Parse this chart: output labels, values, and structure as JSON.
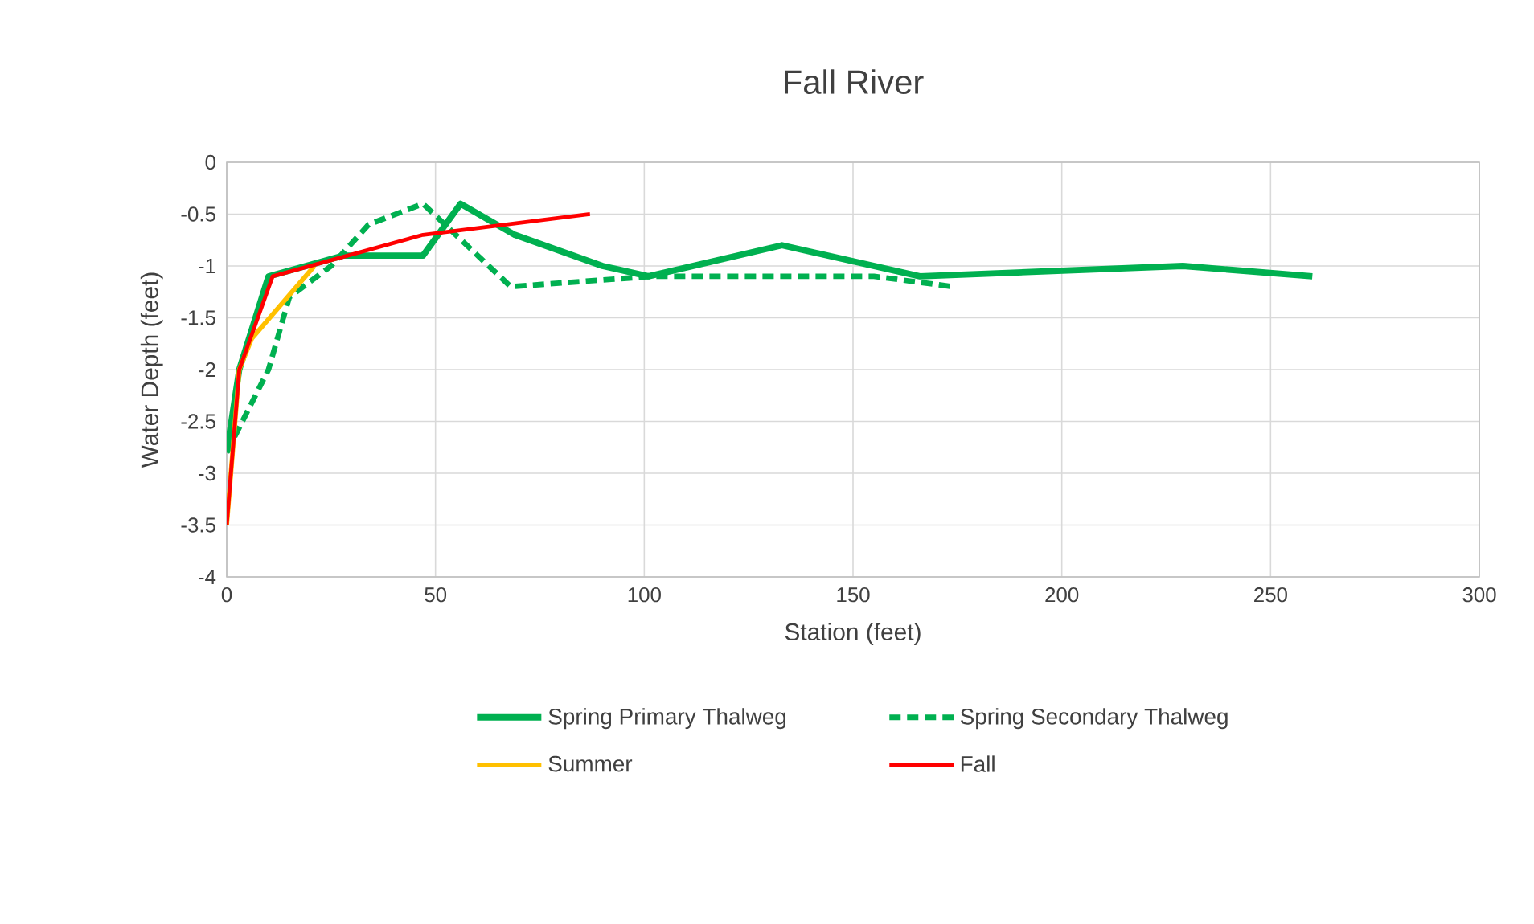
{
  "chart_data": {
    "type": "line",
    "title": "Fall River",
    "xlabel": "Station (feet)",
    "ylabel": "Water Depth (feet)",
    "xlim": [
      0,
      300
    ],
    "xticks": [
      0,
      50,
      100,
      150,
      200,
      250,
      300
    ],
    "ylim": [
      -4,
      0
    ],
    "yticks": [
      -4,
      -3.5,
      -3,
      -2.5,
      -2,
      -1.5,
      -1,
      -0.5,
      0
    ],
    "grid": true,
    "legend": "bottom",
    "marker": "none",
    "series": [
      {
        "name": "Spring Primary Thalweg",
        "color": "#00b050",
        "line_style": "solid",
        "x": [
          0,
          3,
          10,
          28,
          47,
          56,
          69,
          90,
          101,
          133,
          166,
          229,
          260
        ],
        "values": [
          -2.8,
          -2.0,
          -1.1,
          -0.9,
          -0.9,
          -0.4,
          -0.7,
          -1.0,
          -1.1,
          -0.8,
          -1.1,
          -1.0,
          -1.1
        ]
      },
      {
        "name": "Spring Secondary Thalweg",
        "color": "#00b050",
        "line_style": "dashed",
        "x": [
          0,
          5,
          10,
          15,
          25,
          34,
          47,
          68,
          102,
          155,
          174
        ],
        "values": [
          -2.8,
          -2.4,
          -2.0,
          -1.3,
          -1.0,
          -0.6,
          -0.4,
          -1.2,
          -1.1,
          -1.1,
          -1.2
        ]
      },
      {
        "name": "Summer",
        "color": "#ffc000",
        "line_style": "solid",
        "x": [
          0,
          3,
          6,
          21
        ],
        "values": [
          -3.5,
          -2.0,
          -1.7,
          -1.0
        ]
      },
      {
        "name": "Fall",
        "color": "#ff0000",
        "line_style": "solid",
        "x": [
          0,
          3,
          11,
          47,
          87
        ],
        "values": [
          -3.5,
          -2.0,
          -1.1,
          -0.7,
          -0.5
        ]
      }
    ]
  }
}
